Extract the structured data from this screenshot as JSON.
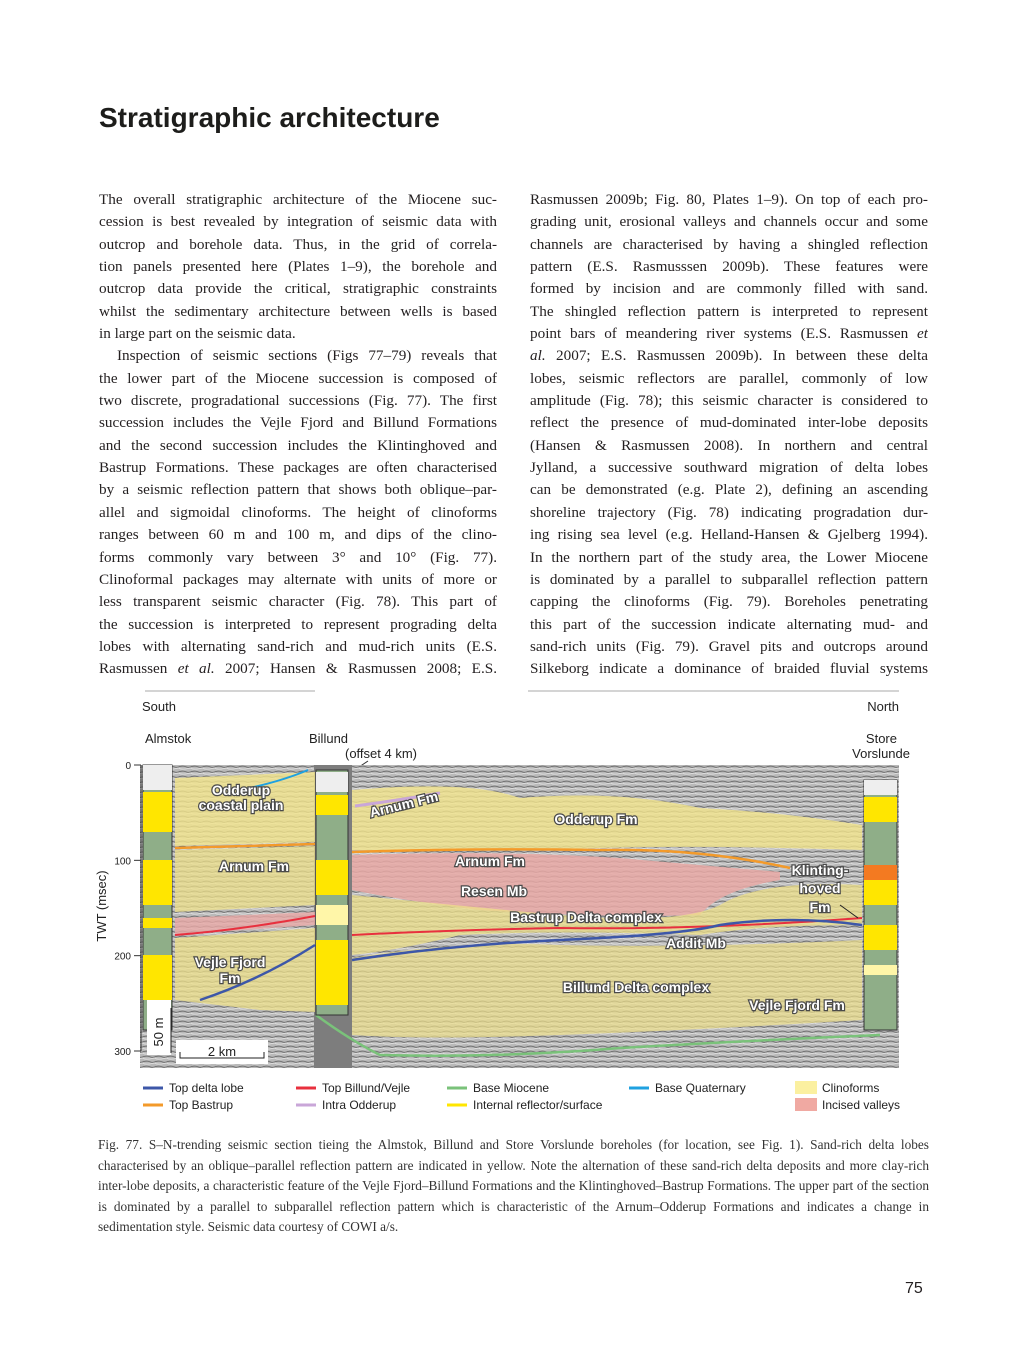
{
  "header": {
    "title": "Stratigraphic architecture"
  },
  "body": {
    "columns": [
      {
        "paragraphs": [
          [
            "The overall stratigraphic architecture of the Miocene suc-",
            "cession is best revealed by integration of seismic data with",
            "outcrop and borehole data.  Thus, in the grid of correla-",
            "tion panels presented here (Plates 1–9), the borehole and",
            "outcrop data provide the critical, stratigraphic constraints",
            "whilst the sedimentary architecture between wells is based",
            "in large part on the seismic data."
          ],
          [
            "Inspection of seismic sections (Figs 77–79) reveals that",
            "the lower part of the Miocene succession is composed of",
            "two discrete, progradational successions (Fig. 77). The first",
            "succession includes the Vejle Fjord and Billund Formations",
            "and the second succession includes the Klintinghoved and",
            "Bastrup Formations. These packages are often characterised",
            "by a seismic reflection pattern that shows both oblique–par-",
            "allel and sigmoidal clinoforms. The height of clinoforms",
            "ranges between 60 m and 100 m, and dips of the clino-",
            "forms commonly vary between 3° and 10° (Fig. 77).",
            "Clinoformal packages may alternate with units of more or",
            "less transparent seismic character (Fig. 78). This part of",
            "the succession is interpreted to represent prograding delta",
            "lobes with alternating sand-rich and mud-rich units (E.S.",
            [
              {
                "text": "Rasmussen "
              },
              {
                "text": "et al.",
                "italic": true
              },
              {
                "text": " 2007; Hansen & Rasmussen 2008; E.S."
              }
            ]
          ]
        ]
      },
      {
        "paragraphs": [
          [
            "Rasmussen 2009b; Fig. 80, Plates 1–9). On top of each pro-",
            "grading unit, erosional valleys and channels occur and some",
            "channels are characterised by having a shingled reflection",
            "pattern (E.S. Rasmusssen 2009b). These features were",
            "formed by incision and are commonly filled with sand.",
            "The shingled reflection pattern is interpreted to represent",
            [
              {
                "text": "point bars of meandering river systems (E.S. Rasmussen "
              },
              {
                "text": "et",
                "italic": true
              }
            ],
            [
              {
                "text": "al.",
                "italic": true
              },
              {
                "text": " 2007; E.S. Rasmussen 2009b). In between these delta"
              }
            ],
            "lobes, seismic reflectors are parallel, commonly of low",
            "amplitude (Fig. 78); this seismic character is considered to",
            "reflect the presence of mud-dominated inter-lobe deposits",
            "(Hansen & Rasmussen 2008). In northern and central",
            "Jylland, a successive southward migration of delta lobes",
            "can be demonstrated (e.g. Plate 2), defining an ascending",
            "shoreline trajectory (Fig. 78) indicating progradation dur-",
            "ing rising sea level (e.g. Helland-Hansen & Gjelberg 1994).",
            "In the northern part of the study area, the Lower Miocene",
            "is dominated by a parallel to subparallel reflection pattern",
            "capping the clinoforms (Fig. 79). Boreholes penetrating",
            "this part of the succession indicate alternating mud- and",
            "sand-rich units (Fig. 79). Gravel pits and outcrops around",
            "Silkeborg indicate a dominance of braided fluvial systems"
          ]
        ]
      }
    ]
  },
  "figure": {
    "direction": {
      "left": "South",
      "right": "North"
    },
    "wells": {
      "almstok": "Almstok",
      "billund": "Billund",
      "billund_note": "(offset 4 km)",
      "store": "Store",
      "vorslunde": "Vorslunde"
    },
    "axis": {
      "label": "TWT (msec)",
      "ticks": [
        0,
        100,
        200,
        300
      ]
    },
    "scale": {
      "vertical": "50 m",
      "horizontal": "2 km"
    },
    "units": {
      "odderup_coastal_1": "Odderup",
      "odderup_coastal_2": "coastal plain",
      "arnum_upper": "Arnum Fm",
      "odderup_fm": "Odderup Fm",
      "arnum_left": "Arnum Fm",
      "arnum_mid": "Arnum Fm",
      "resen": "Resen Mb",
      "bastrup": "Bastrup Delta complex",
      "klint_1": "Klinting-",
      "klint_2": "hoved",
      "klint_3": "Fm",
      "addit": "Addit Mb",
      "vejle_left_1": "Vejle Fjord",
      "vejle_left_2": "Fm",
      "billund_delta": "Billund Delta complex",
      "vejle_right": "Vejle Fjord Fm"
    },
    "legend": [
      "Top delta lobe",
      "Top Billund/Vejle",
      "Base Miocene",
      "Base Quaternary",
      "Clinoforms",
      "Top Bastrup",
      "Intra Odderup",
      "Internal reflector/surface",
      "Incised valleys"
    ],
    "caption": "Fig. 77. S–N-trending seismic section tieing the Almstok, Billund and Store Vorslunde boreholes (for location, see Fig. 1). Sand-rich delta lobes characterised by an oblique–parallel reflection pattern are indicated in yellow. Note the alternation of these sand-rich delta deposits and more clay-rich inter-lobe deposits, a characteristic feature of the Vejle Fjord–Billund Formations and the Klintinghoved–Bastrup Formations. The upper part of the section is dominated by a parallel to subparallel reflection pattern which is characteristic of the Arnum–Odderup Formations and indicates a change in sedimentation style. Seismic data courtesy of COWI a/s."
  },
  "page_number": "75"
}
